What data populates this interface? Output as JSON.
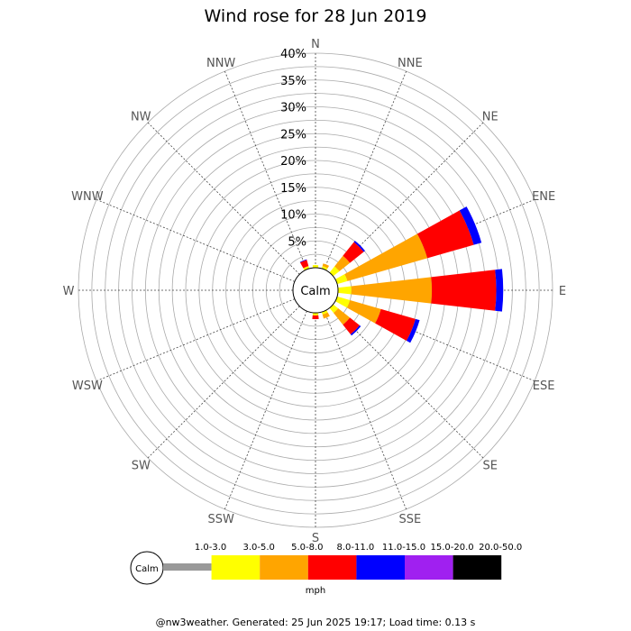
{
  "title": "Wind rose for 28 Jun 2019",
  "footer": "@nw3weather. Generated: 25 Jun 2025 19:17; Load time: 0.13 s",
  "calm_label": "Calm",
  "unit_label": "mph",
  "chart_data": {
    "type": "wind-rose",
    "directions": [
      "N",
      "NNE",
      "NE",
      "ENE",
      "E",
      "ESE",
      "SE",
      "SSE",
      "S",
      "SSW",
      "SW",
      "WSW",
      "W",
      "WNW",
      "NW",
      "NNW"
    ],
    "radial_ticks": [
      "5%",
      "10%",
      "15%",
      "20%",
      "25%",
      "30%",
      "35%",
      "40%"
    ],
    "radial_max": 40,
    "grid": true,
    "speed_bins": [
      {
        "label": "1.0-3.0",
        "color": "#999999"
      },
      {
        "label": "3.0-5.0",
        "color": "#ffff00"
      },
      {
        "label": "5.0-8.0",
        "color": "#ffa500"
      },
      {
        "label": "8.0-11.0",
        "color": "#ff0000"
      },
      {
        "label": "11.0-15.0",
        "color": "#0000ff"
      },
      {
        "label": "15.0-20.0",
        "color": "#a020f0"
      },
      {
        "label": "20.0-50.0",
        "color": "#000000"
      }
    ],
    "series": [
      {
        "direction": "NNW",
        "cumulative": [
          0,
          0.5,
          0.5,
          1.7,
          1.8,
          1.8,
          1.8
        ]
      },
      {
        "direction": "N",
        "cumulative": [
          0,
          0.5,
          0.5,
          0.5,
          0.5,
          0.5,
          0.5
        ]
      },
      {
        "direction": "NNE",
        "cumulative": [
          0,
          0.5,
          1.0,
          1.0,
          1.0,
          1.0,
          1.0
        ]
      },
      {
        "direction": "NE",
        "cumulative": [
          0,
          1.5,
          4.0,
          7.3,
          7.6,
          7.6,
          7.6
        ]
      },
      {
        "direction": "ENE",
        "cumulative": [
          0,
          2.0,
          17.5,
          26.5,
          28.0,
          28.0,
          28.0
        ]
      },
      {
        "direction": "E",
        "cumulative": [
          0,
          2.5,
          17.5,
          29.5,
          30.8,
          30.8,
          30.8
        ]
      },
      {
        "direction": "ESE",
        "cumulative": [
          0,
          2.5,
          8.5,
          15.2,
          16.0,
          16.0,
          16.0
        ]
      },
      {
        "direction": "SE",
        "cumulative": [
          0,
          1.2,
          4.0,
          6.3,
          6.6,
          6.6,
          6.6
        ]
      },
      {
        "direction": "SSE",
        "cumulative": [
          0,
          0.5,
          1.3,
          1.3,
          1.3,
          1.3,
          1.3
        ]
      },
      {
        "direction": "S",
        "cumulative": [
          0,
          0.5,
          0.5,
          1.2,
          1.2,
          1.2,
          1.2
        ]
      }
    ]
  }
}
